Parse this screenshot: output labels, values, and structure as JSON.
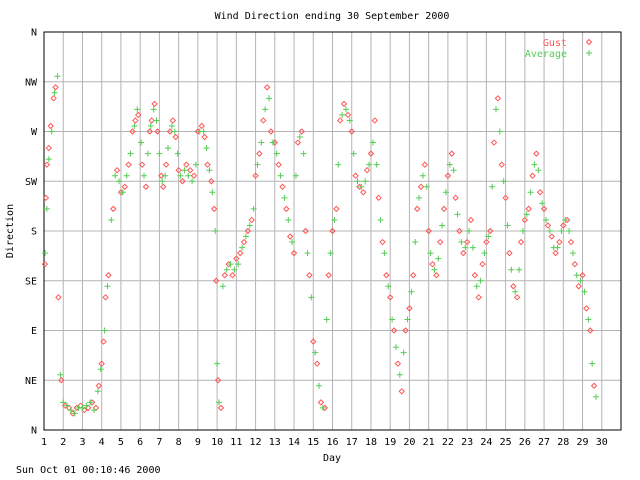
{
  "footer": {
    "timestamp": "Sun Oct 01 00:10:46 2000"
  },
  "chart_data": {
    "type": "scatter",
    "title": "Wind Direction ending 30 September 2000",
    "xlabel": "Day",
    "ylabel": "Direction",
    "xlim": [
      1,
      31
    ],
    "ylim": [
      0,
      360
    ],
    "grid": true,
    "legend_position": "top-right",
    "x_ticks": [
      "1",
      "2",
      "3",
      "4",
      "5",
      "6",
      "7",
      "8",
      "9",
      "10",
      "11",
      "12",
      "13",
      "14",
      "15",
      "16",
      "17",
      "18",
      "19",
      "20",
      "21",
      "22",
      "23",
      "24",
      "25",
      "26",
      "27",
      "28",
      "29",
      "30"
    ],
    "y_ticks": [
      {
        "label": "N",
        "value": 0
      },
      {
        "label": "NE",
        "value": 45
      },
      {
        "label": "E",
        "value": 90
      },
      {
        "label": "SE",
        "value": 135
      },
      {
        "label": "S",
        "value": 180
      },
      {
        "label": "SW",
        "value": 225
      },
      {
        "label": "W",
        "value": 270
      },
      {
        "label": "NW",
        "value": 315
      },
      {
        "label": "N",
        "value": 360
      }
    ],
    "series": [
      {
        "name": "Gust",
        "marker": "diamond",
        "color": "#ff5555",
        "points": [
          [
            1.05,
            150
          ],
          [
            1.1,
            210
          ],
          [
            1.15,
            240
          ],
          [
            1.25,
            255
          ],
          [
            1.35,
            275
          ],
          [
            1.5,
            300
          ],
          [
            1.6,
            310
          ],
          [
            1.75,
            120
          ],
          [
            1.9,
            45
          ],
          [
            2.1,
            22
          ],
          [
            2.3,
            20
          ],
          [
            2.5,
            15
          ],
          [
            2.7,
            20
          ],
          [
            2.9,
            22
          ],
          [
            3.1,
            18
          ],
          [
            3.3,
            20
          ],
          [
            3.5,
            25
          ],
          [
            3.7,
            20
          ],
          [
            3.85,
            40
          ],
          [
            4.0,
            60
          ],
          [
            4.1,
            80
          ],
          [
            4.2,
            120
          ],
          [
            4.35,
            140
          ],
          [
            4.6,
            200
          ],
          [
            4.8,
            235
          ],
          [
            5.0,
            215
          ],
          [
            5.2,
            220
          ],
          [
            5.4,
            240
          ],
          [
            5.6,
            270
          ],
          [
            5.75,
            280
          ],
          [
            5.9,
            285
          ],
          [
            6.1,
            240
          ],
          [
            6.3,
            220
          ],
          [
            6.5,
            270
          ],
          [
            6.6,
            280
          ],
          [
            6.75,
            295
          ],
          [
            6.9,
            270
          ],
          [
            7.1,
            230
          ],
          [
            7.2,
            220
          ],
          [
            7.35,
            240
          ],
          [
            7.55,
            270
          ],
          [
            7.7,
            280
          ],
          [
            7.85,
            265
          ],
          [
            8.0,
            235
          ],
          [
            8.2,
            225
          ],
          [
            8.4,
            240
          ],
          [
            8.6,
            235
          ],
          [
            8.8,
            230
          ],
          [
            9.0,
            270
          ],
          [
            9.2,
            275
          ],
          [
            9.35,
            265
          ],
          [
            9.5,
            240
          ],
          [
            9.7,
            225
          ],
          [
            9.85,
            200
          ],
          [
            9.95,
            135
          ],
          [
            10.05,
            45
          ],
          [
            10.2,
            20
          ],
          [
            10.4,
            140
          ],
          [
            10.6,
            150
          ],
          [
            10.8,
            140
          ],
          [
            11.0,
            155
          ],
          [
            11.2,
            160
          ],
          [
            11.4,
            170
          ],
          [
            11.6,
            180
          ],
          [
            11.8,
            190
          ],
          [
            12.0,
            230
          ],
          [
            12.2,
            250
          ],
          [
            12.4,
            280
          ],
          [
            12.6,
            310
          ],
          [
            12.8,
            270
          ],
          [
            13.0,
            260
          ],
          [
            13.2,
            240
          ],
          [
            13.4,
            220
          ],
          [
            13.6,
            200
          ],
          [
            13.8,
            175
          ],
          [
            14.0,
            160
          ],
          [
            14.2,
            260
          ],
          [
            14.4,
            270
          ],
          [
            14.6,
            180
          ],
          [
            14.8,
            140
          ],
          [
            15.0,
            80
          ],
          [
            15.2,
            60
          ],
          [
            15.4,
            25
          ],
          [
            15.6,
            20
          ],
          [
            15.8,
            140
          ],
          [
            16.0,
            180
          ],
          [
            16.2,
            200
          ],
          [
            16.4,
            280
          ],
          [
            16.6,
            295
          ],
          [
            16.8,
            285
          ],
          [
            17.0,
            270
          ],
          [
            17.2,
            230
          ],
          [
            17.4,
            220
          ],
          [
            17.6,
            215
          ],
          [
            17.8,
            235
          ],
          [
            18.0,
            250
          ],
          [
            18.2,
            280
          ],
          [
            18.4,
            210
          ],
          [
            18.6,
            170
          ],
          [
            18.8,
            140
          ],
          [
            19.0,
            120
          ],
          [
            19.2,
            90
          ],
          [
            19.4,
            60
          ],
          [
            19.6,
            35
          ],
          [
            19.8,
            90
          ],
          [
            20.0,
            110
          ],
          [
            20.2,
            140
          ],
          [
            20.4,
            200
          ],
          [
            20.6,
            220
          ],
          [
            20.8,
            240
          ],
          [
            21.0,
            180
          ],
          [
            21.2,
            150
          ],
          [
            21.4,
            140
          ],
          [
            21.6,
            170
          ],
          [
            21.8,
            200
          ],
          [
            22.0,
            230
          ],
          [
            22.2,
            250
          ],
          [
            22.4,
            210
          ],
          [
            22.6,
            180
          ],
          [
            22.8,
            160
          ],
          [
            23.0,
            170
          ],
          [
            23.2,
            190
          ],
          [
            23.4,
            140
          ],
          [
            23.6,
            120
          ],
          [
            23.8,
            150
          ],
          [
            24.0,
            170
          ],
          [
            24.2,
            180
          ],
          [
            24.4,
            260
          ],
          [
            24.6,
            300
          ],
          [
            24.8,
            240
          ],
          [
            25.0,
            210
          ],
          [
            25.2,
            160
          ],
          [
            25.4,
            130
          ],
          [
            25.6,
            120
          ],
          [
            25.8,
            170
          ],
          [
            26.0,
            190
          ],
          [
            26.2,
            200
          ],
          [
            26.4,
            230
          ],
          [
            26.6,
            250
          ],
          [
            26.8,
            215
          ],
          [
            27.0,
            200
          ],
          [
            27.2,
            185
          ],
          [
            27.4,
            175
          ],
          [
            27.6,
            160
          ],
          [
            27.8,
            170
          ],
          [
            28.0,
            185
          ],
          [
            28.2,
            190
          ],
          [
            28.4,
            170
          ],
          [
            28.6,
            150
          ],
          [
            28.8,
            130
          ],
          [
            29.0,
            140
          ],
          [
            29.2,
            110
          ],
          [
            29.4,
            90
          ],
          [
            29.6,
            40
          ]
        ]
      },
      {
        "name": "Average",
        "marker": "plus",
        "color": "#55cc55",
        "points": [
          [
            1.05,
            160
          ],
          [
            1.15,
            200
          ],
          [
            1.25,
            245
          ],
          [
            1.4,
            270
          ],
          [
            1.55,
            305
          ],
          [
            1.7,
            320
          ],
          [
            1.85,
            50
          ],
          [
            2.0,
            25
          ],
          [
            2.2,
            22
          ],
          [
            2.4,
            18
          ],
          [
            2.6,
            15
          ],
          [
            2.8,
            20
          ],
          [
            3.0,
            20
          ],
          [
            3.2,
            22
          ],
          [
            3.4,
            25
          ],
          [
            3.6,
            18
          ],
          [
            3.8,
            35
          ],
          [
            3.95,
            55
          ],
          [
            4.15,
            90
          ],
          [
            4.3,
            130
          ],
          [
            4.5,
            190
          ],
          [
            4.7,
            230
          ],
          [
            4.9,
            225
          ],
          [
            5.1,
            215
          ],
          [
            5.3,
            230
          ],
          [
            5.5,
            250
          ],
          [
            5.7,
            275
          ],
          [
            5.85,
            290
          ],
          [
            6.05,
            260
          ],
          [
            6.2,
            230
          ],
          [
            6.4,
            250
          ],
          [
            6.55,
            275
          ],
          [
            6.7,
            290
          ],
          [
            6.85,
            280
          ],
          [
            7.0,
            250
          ],
          [
            7.15,
            225
          ],
          [
            7.3,
            230
          ],
          [
            7.45,
            255
          ],
          [
            7.65,
            275
          ],
          [
            7.8,
            270
          ],
          [
            7.95,
            250
          ],
          [
            8.1,
            230
          ],
          [
            8.3,
            235
          ],
          [
            8.5,
            230
          ],
          [
            8.7,
            225
          ],
          [
            8.9,
            240
          ],
          [
            9.1,
            270
          ],
          [
            9.3,
            270
          ],
          [
            9.45,
            255
          ],
          [
            9.6,
            235
          ],
          [
            9.75,
            215
          ],
          [
            9.9,
            180
          ],
          [
            10.0,
            60
          ],
          [
            10.1,
            25
          ],
          [
            10.3,
            130
          ],
          [
            10.5,
            145
          ],
          [
            10.7,
            150
          ],
          [
            10.9,
            145
          ],
          [
            11.1,
            150
          ],
          [
            11.3,
            165
          ],
          [
            11.5,
            175
          ],
          [
            11.7,
            185
          ],
          [
            11.9,
            200
          ],
          [
            12.1,
            240
          ],
          [
            12.3,
            260
          ],
          [
            12.5,
            290
          ],
          [
            12.7,
            300
          ],
          [
            12.9,
            260
          ],
          [
            13.1,
            250
          ],
          [
            13.3,
            230
          ],
          [
            13.5,
            210
          ],
          [
            13.7,
            190
          ],
          [
            13.9,
            170
          ],
          [
            14.1,
            230
          ],
          [
            14.3,
            265
          ],
          [
            14.5,
            250
          ],
          [
            14.7,
            160
          ],
          [
            14.9,
            120
          ],
          [
            15.1,
            70
          ],
          [
            15.3,
            40
          ],
          [
            15.5,
            20
          ],
          [
            15.7,
            100
          ],
          [
            15.9,
            160
          ],
          [
            16.1,
            190
          ],
          [
            16.3,
            240
          ],
          [
            16.5,
            285
          ],
          [
            16.7,
            290
          ],
          [
            16.9,
            280
          ],
          [
            17.1,
            250
          ],
          [
            17.3,
            225
          ],
          [
            17.5,
            220
          ],
          [
            17.7,
            225
          ],
          [
            17.9,
            240
          ],
          [
            18.1,
            260
          ],
          [
            18.3,
            240
          ],
          [
            18.5,
            190
          ],
          [
            18.7,
            160
          ],
          [
            18.9,
            130
          ],
          [
            19.1,
            100
          ],
          [
            19.3,
            75
          ],
          [
            19.5,
            50
          ],
          [
            19.7,
            70
          ],
          [
            19.9,
            100
          ],
          [
            20.1,
            125
          ],
          [
            20.3,
            170
          ],
          [
            20.5,
            210
          ],
          [
            20.7,
            230
          ],
          [
            20.9,
            220
          ],
          [
            21.1,
            160
          ],
          [
            21.3,
            145
          ],
          [
            21.5,
            155
          ],
          [
            21.7,
            185
          ],
          [
            21.9,
            215
          ],
          [
            22.1,
            240
          ],
          [
            22.3,
            235
          ],
          [
            22.5,
            195
          ],
          [
            22.7,
            170
          ],
          [
            22.9,
            165
          ],
          [
            23.1,
            180
          ],
          [
            23.3,
            165
          ],
          [
            23.5,
            130
          ],
          [
            23.7,
            135
          ],
          [
            23.9,
            160
          ],
          [
            24.1,
            175
          ],
          [
            24.3,
            220
          ],
          [
            24.5,
            290
          ],
          [
            24.7,
            270
          ],
          [
            24.9,
            225
          ],
          [
            25.1,
            185
          ],
          [
            25.3,
            145
          ],
          [
            25.5,
            125
          ],
          [
            25.7,
            145
          ],
          [
            25.9,
            180
          ],
          [
            26.1,
            195
          ],
          [
            26.3,
            215
          ],
          [
            26.5,
            240
          ],
          [
            26.7,
            235
          ],
          [
            26.9,
            205
          ],
          [
            27.1,
            190
          ],
          [
            27.3,
            180
          ],
          [
            27.5,
            165
          ],
          [
            27.7,
            165
          ],
          [
            27.9,
            180
          ],
          [
            28.1,
            190
          ],
          [
            28.3,
            180
          ],
          [
            28.5,
            160
          ],
          [
            28.7,
            140
          ],
          [
            28.9,
            135
          ],
          [
            29.1,
            125
          ],
          [
            29.3,
            100
          ],
          [
            29.5,
            60
          ],
          [
            29.7,
            30
          ]
        ]
      }
    ]
  }
}
